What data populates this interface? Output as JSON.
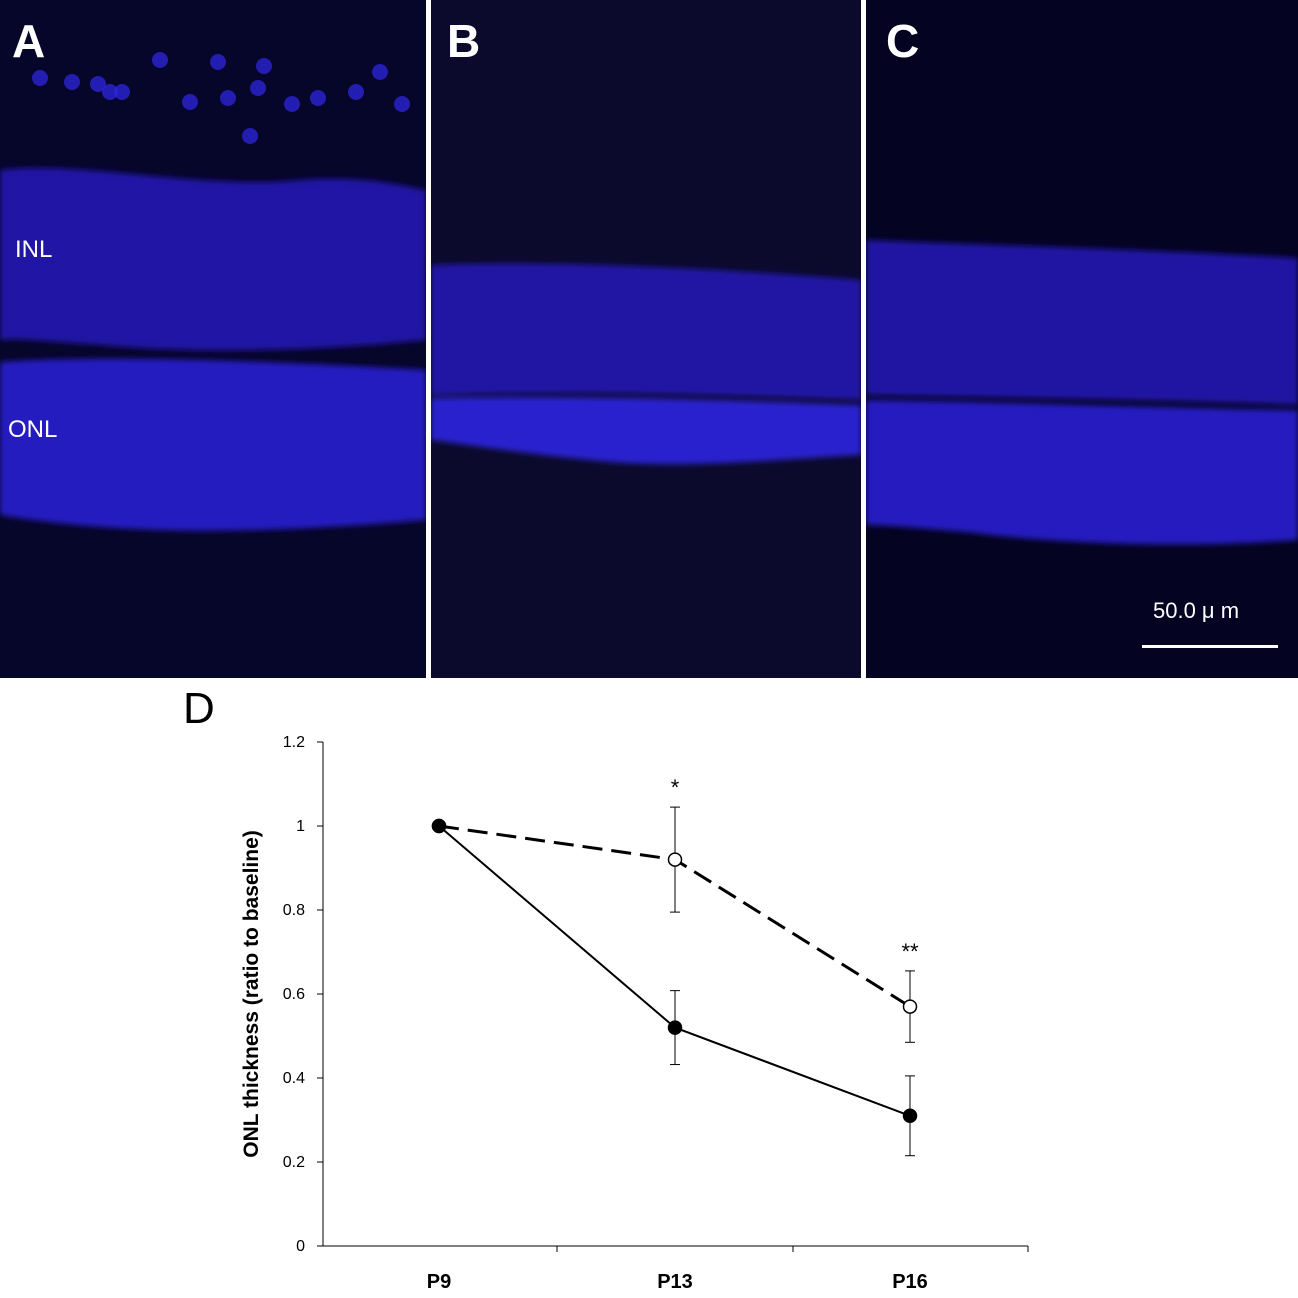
{
  "panels": [
    {
      "letter": "A",
      "labels": {
        "inl": "INL",
        "onl": "ONL"
      }
    },
    {
      "letter": "B"
    },
    {
      "letter": "C",
      "scalebar": "50.0 μ m"
    }
  ],
  "panel_d_letter": "D",
  "colors": {
    "micrograph_bg": "#06052a",
    "nuclei": "#2a1fd0",
    "line": "#000000"
  },
  "chart_data": {
    "type": "line",
    "categories": [
      "P9",
      "P13",
      "P16"
    ],
    "ylabel": "ONL thickness (ratio to baseline)",
    "ylim": [
      0,
      1.2
    ],
    "yticks": [
      "0",
      "0.2",
      "0.4",
      "0.6",
      "0.8",
      "1",
      "1.2"
    ],
    "series": [
      {
        "style": "dashed",
        "marker": "open-circle",
        "values": [
          1.0,
          0.92,
          0.57
        ],
        "errors": [
          0,
          0.125,
          0.085
        ]
      },
      {
        "style": "solid",
        "marker": "filled-circle",
        "values": [
          1.0,
          0.52,
          0.31
        ],
        "errors": [
          0,
          0.088,
          0.095
        ]
      }
    ],
    "annotations": [
      {
        "category": "P13",
        "text": "*"
      },
      {
        "category": "P16",
        "text": "**"
      }
    ]
  }
}
